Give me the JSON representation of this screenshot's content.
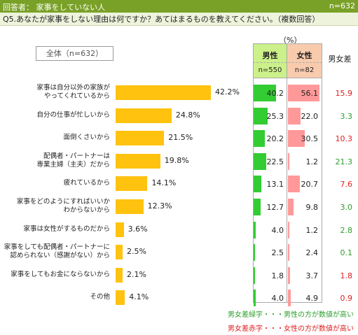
{
  "header": {
    "respondents": "回答者： 家事をしていない人",
    "n": "n=632"
  },
  "question": "Q5.あなたが家事をしない理由は何ですか？あてはまるものを教えてください。（複数回答）",
  "unit": "（%）",
  "overall_label": "全体（n=632）",
  "table_headers": {
    "male": "男性",
    "male_n": "n=550",
    "female": "女性",
    "female_n": "n=82",
    "diff": "男女差"
  },
  "legend_notes": {
    "green": "男女差緑字・・・男性の方が数値が高い",
    "red": "男女差赤字・・・女性の方が数値が高い"
  },
  "colors": {
    "bar": "#ffc20e",
    "male_bar": "#33cc33",
    "female_bar": "#ff9999",
    "diff_green": "#2e9e2e",
    "diff_red": "#e02020",
    "header_bg": "#7aa127"
  },
  "chart_data": {
    "type": "bar",
    "orientation": "horizontal",
    "categories": [
      "家事は自分以外の家族が\nやってくれているから",
      "自分の仕事が忙しいから",
      "面倒くさいから",
      "配偶者・パートナーは\n専業主婦（主夫）だから",
      "疲れているから",
      "家事をどのようにすればいいか\nわからないから",
      "家事は女性がするものだから",
      "家事をしても配偶者・パートナーに\n認められない（感謝がない）から",
      "家事をしてもお金にならないから",
      "その他"
    ],
    "series": [
      {
        "name": "全体（n=632）",
        "values": [
          42.2,
          24.8,
          21.5,
          19.8,
          14.1,
          12.3,
          3.6,
          2.5,
          2.1,
          4.1
        ],
        "labels": [
          "42.2%",
          "24.8%",
          "21.5%",
          "19.8%",
          "14.1%",
          "12.3%",
          "3.6%",
          "2.5%",
          "2.1%",
          "4.1%"
        ]
      },
      {
        "name": "男性",
        "values": [
          40.2,
          25.3,
          20.2,
          22.5,
          13.1,
          12.7,
          4.0,
          2.5,
          1.8,
          4.0
        ],
        "labels": [
          "40.2",
          "25.3",
          "20.2",
          "22.5",
          "13.1",
          "12.7",
          "4.0",
          "2.5",
          "1.8",
          "4.0"
        ]
      },
      {
        "name": "女性",
        "values": [
          56.1,
          22.0,
          30.5,
          1.2,
          20.7,
          9.8,
          1.2,
          2.4,
          3.7,
          4.9
        ],
        "labels": [
          "56.1",
          "22.0",
          "30.5",
          "1.2",
          "20.7",
          "9.8",
          "1.2",
          "2.4",
          "3.7",
          "4.9"
        ]
      }
    ],
    "differences": [
      {
        "value": "15.9",
        "higher": "female"
      },
      {
        "value": "3.3",
        "higher": "male"
      },
      {
        "value": "10.3",
        "higher": "female"
      },
      {
        "value": "21.3",
        "higher": "male"
      },
      {
        "value": "7.6",
        "higher": "female"
      },
      {
        "value": "3.0",
        "higher": "male"
      },
      {
        "value": "2.8",
        "higher": "male"
      },
      {
        "value": "0.1",
        "higher": "male"
      },
      {
        "value": "1.8",
        "higher": "female"
      },
      {
        "value": "0.9",
        "higher": "female"
      }
    ]
  }
}
